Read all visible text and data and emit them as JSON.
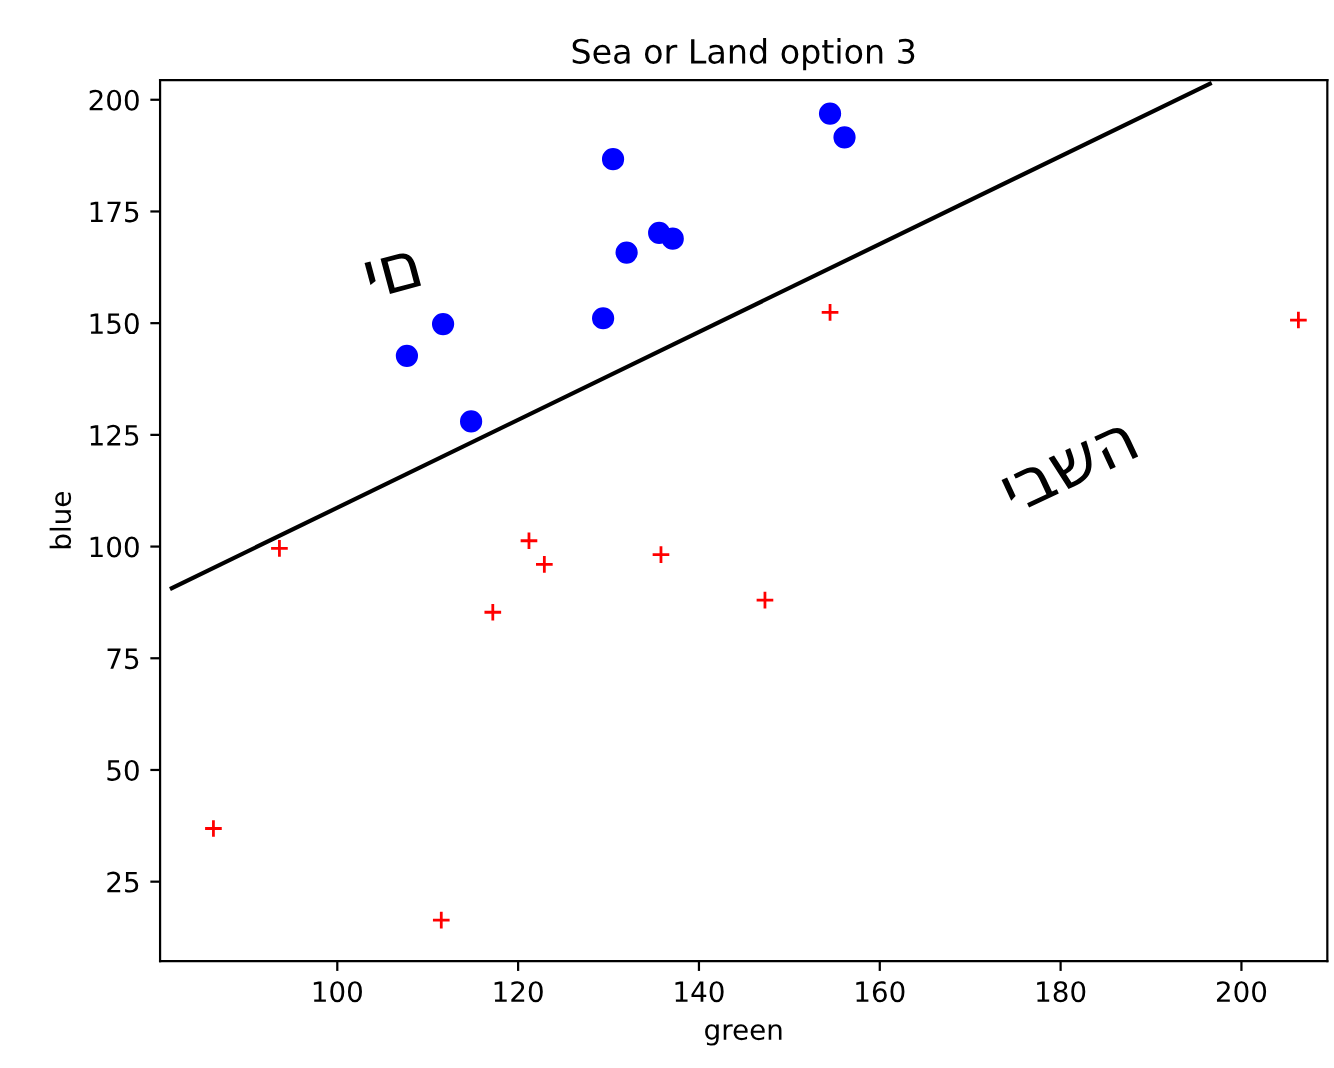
{
  "chart_data": {
    "type": "scatter",
    "title": "Sea or Land option 3",
    "xlabel": "green",
    "ylabel": "blue",
    "xlim": [
      80.4,
      209.5
    ],
    "ylim": [
      7.2,
      204.4
    ],
    "xticks": [
      100,
      120,
      140,
      160,
      180,
      200
    ],
    "yticks": [
      25,
      50,
      75,
      100,
      125,
      150,
      175,
      200
    ],
    "grid": false,
    "legend": false,
    "annotations": [
      "ים",
      "יבשה"
    ],
    "series": [
      {
        "marker": "circle",
        "color": "#0000ff",
        "x": [
          107.7,
          111.7,
          114.8,
          130.5,
          129.4,
          132.0,
          135.6,
          137.1,
          154.5,
          156.1
        ],
        "values": [
          142.7,
          149.8,
          128.0,
          186.7,
          151.1,
          165.8,
          170.2,
          168.9,
          196.9,
          191.6
        ]
      },
      {
        "marker": "cross",
        "color": "#ff0000",
        "x": [
          93.6,
          86.3,
          111.5,
          117.2,
          121.2,
          122.9,
          135.8,
          147.3,
          154.5,
          206.3
        ],
        "values": [
          99.6,
          36.9,
          16.4,
          85.3,
          101.3,
          96.0,
          98.2,
          88.0,
          152.4,
          150.7
        ]
      },
      {
        "type": "line",
        "line_style": "solid",
        "color": "#000000",
        "x": [
          81.7,
          196.5
        ],
        "values": [
          90.7,
          203.6
        ]
      }
    ]
  }
}
